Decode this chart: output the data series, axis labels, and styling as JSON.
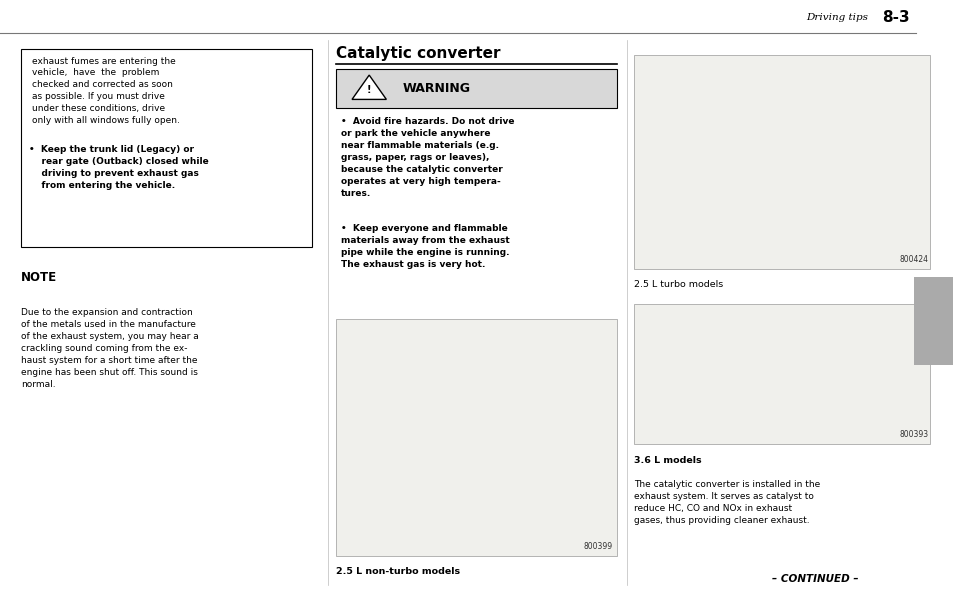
{
  "page_width": 9.54,
  "page_height": 6.08,
  "bg_color": "#ffffff",
  "header_line_color": "#777777",
  "header_text": "Driving tips",
  "header_page": "8-3",
  "box1_lines": [
    "exhaust fumes are entering the",
    "vehicle,  have  the  problem",
    "checked and corrected as soon",
    "as possible. If you must drive",
    "under these conditions, drive",
    "only with all windows fully open."
  ],
  "box1_bullet": "Keep the trunk lid (Legacy) or\n    rear gate (Outback) closed while\n    driving to prevent exhaust gas\n    from entering the vehicle.",
  "note_title": "NOTE",
  "note_text": "Due to the expansion and contraction\nof the metals used in the manufacture\nof the exhaust system, you may hear a\ncrackling sound coming from the ex-\nhaust system for a short time after the\nengine has been shut off. This sound is\nnormal.",
  "section_title": "Catalytic converter",
  "warning_title": "WARNING",
  "warning_bullet1_lines": [
    "Avoid fire hazards. Do not drive",
    "or park the vehicle anywhere",
    "near flammable materials (e.g.",
    "grass, paper, rags or leaves),",
    "because the catalytic converter",
    "operates at very high tempera-",
    "tures."
  ],
  "warning_bullet2_lines": [
    "Keep everyone and flammable",
    "materials away from the exhaust",
    "pipe while the engine is running.",
    "The exhaust gas is very hot."
  ],
  "img1_label": "2.5 L non-turbo models",
  "img1_code": "800399",
  "img2_label": "2.5 L turbo models",
  "img2_code": "800424",
  "img3_label": "3.6 L models",
  "img3_code": "800393",
  "bottom_desc_lines": [
    "The catalytic converter is installed in the",
    "exhaust system. It serves as catalyst to",
    "reduce HC, CO and NOx in exhaust",
    "gases, thus providing cleaner exhaust."
  ],
  "continued_text": "– CONTINUED –",
  "text_color": "#000000",
  "gray_tab_color": "#aaaaaa",
  "warning_box_color": "#d8d8d8",
  "border_color": "#000000",
  "c1x": 0.022,
  "c1w": 0.305,
  "c2x": 0.352,
  "c2w": 0.285,
  "c3x": 0.665,
  "c3w": 0.31
}
